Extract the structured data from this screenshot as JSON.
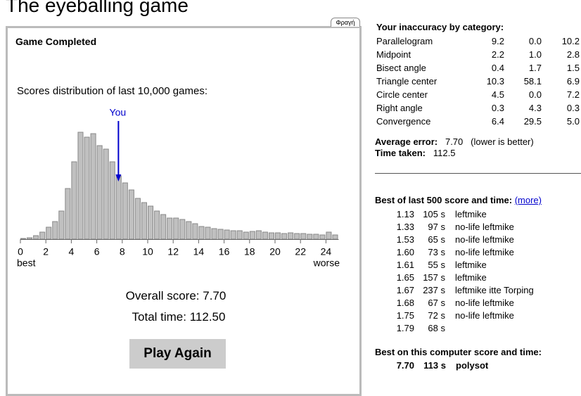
{
  "header": {
    "title": "The eyeballing game"
  },
  "game": {
    "status": "Game Completed",
    "tab_label": "Φραγή",
    "overall_score_label": "Overall score:",
    "overall_score": "7.70",
    "total_time_label": "Total time:",
    "total_time": "112.50",
    "button": "Play Again"
  },
  "chart_data": {
    "type": "histogram",
    "title": "Scores distribution of last 10,000 games:",
    "marker_label": "You",
    "marker_value": 7.7,
    "bins": [
      0,
      0.5,
      1,
      1.5,
      2,
      2.5,
      3,
      3.5,
      4,
      4.5,
      5,
      5.5,
      6,
      6.5,
      7,
      7.5,
      8,
      8.5,
      9,
      9.5,
      10,
      10.5,
      11,
      11.5,
      12,
      12.5,
      13,
      13.5,
      14,
      14.5,
      15,
      15.5,
      16,
      16.5,
      17,
      17.5,
      18,
      18.5,
      19,
      19.5,
      20,
      20.5,
      21,
      21.5,
      22,
      22.5,
      23,
      23.5,
      24,
      24.5,
      25
    ],
    "values": [
      1,
      2,
      5,
      10,
      17,
      25,
      40,
      72,
      110,
      152,
      145,
      150,
      133,
      128,
      110,
      90,
      80,
      70,
      58,
      52,
      47,
      40,
      35,
      30,
      30,
      28,
      25,
      22,
      18,
      17,
      15,
      14,
      13,
      12,
      12,
      10,
      11,
      12,
      10,
      9,
      9,
      8,
      9,
      8,
      8,
      7,
      7,
      6,
      10,
      6
    ],
    "color": "#c0c0c0",
    "marker_color": "#0000cc",
    "xlim": [
      0,
      25
    ],
    "ylim": [
      0,
      160
    ],
    "xticks": [
      0,
      2,
      4,
      6,
      8,
      10,
      12,
      14,
      16,
      18,
      20,
      22,
      24
    ],
    "x_start_label": "best",
    "x_end_label": "worse"
  },
  "inaccuracy": {
    "title": "Your inaccuracy by category:",
    "rows": [
      [
        "Parallelogram",
        "9.2",
        "0.0",
        "10.2"
      ],
      [
        "Midpoint",
        "2.2",
        "1.0",
        "2.8"
      ],
      [
        "Bisect angle",
        "0.4",
        "1.7",
        "1.5"
      ],
      [
        "Triangle center",
        "10.3",
        "58.1",
        "6.9"
      ],
      [
        "Circle center",
        "4.5",
        "0.0",
        "7.2"
      ],
      [
        "Right angle",
        "0.3",
        "4.3",
        "0.3"
      ],
      [
        "Convergence",
        "6.4",
        "29.5",
        "5.0"
      ]
    ],
    "average_label": "Average error:",
    "average": "7.70",
    "average_note": "(lower is better)",
    "time_label": "Time taken:",
    "time": "112.5"
  },
  "best500": {
    "title": "Best of last 500 score and time:",
    "link": "(more)",
    "rows": [
      [
        "1.13",
        "105 s",
        "leftmike"
      ],
      [
        "1.33",
        "97 s",
        "no-life leftmike"
      ],
      [
        "1.53",
        "65 s",
        "no-life leftmike"
      ],
      [
        "1.60",
        "73 s",
        "no-life leftmike"
      ],
      [
        "1.61",
        "55 s",
        "leftmike"
      ],
      [
        "1.65",
        "157 s",
        "leftmike"
      ],
      [
        "1.67",
        "237 s",
        "leftmike itte Torping"
      ],
      [
        "1.68",
        "67 s",
        "no-life leftmike"
      ],
      [
        "1.75",
        "72 s",
        "no-life leftmike"
      ],
      [
        "1.79",
        "68 s"
      ]
    ]
  },
  "best_computer": {
    "title": "Best on this computer score and time:",
    "rows": [
      [
        "7.70",
        "113 s",
        "polysot"
      ]
    ]
  }
}
